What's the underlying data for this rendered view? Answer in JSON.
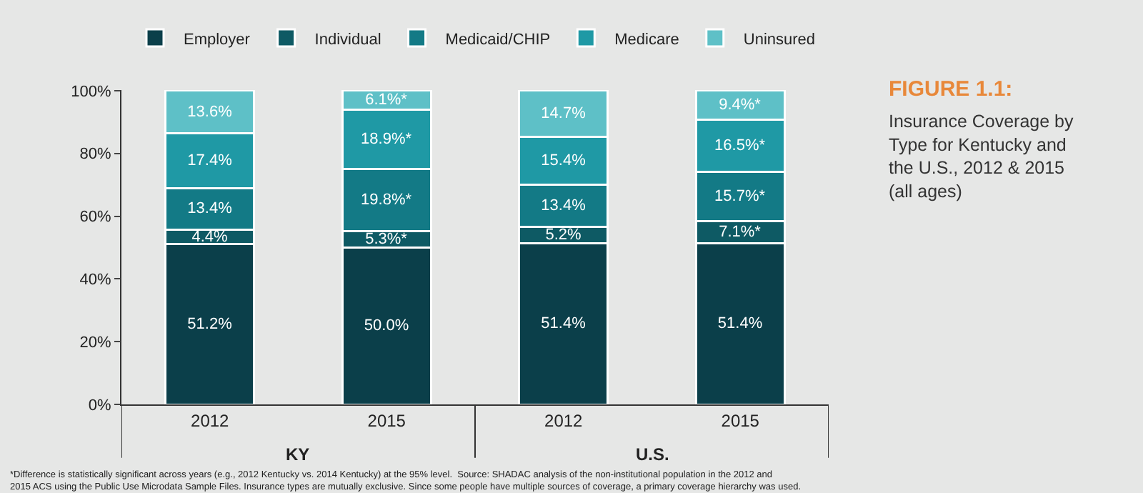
{
  "chart_data": {
    "type": "bar",
    "stacked": true,
    "title": "FIGURE 1.1:",
    "subtitle": "Insurance Coverage by Type for Kentucky and the U.S., 2012 & 2015 (all ages)",
    "categories": [
      "2012",
      "2015",
      "2012",
      "2015"
    ],
    "series": [
      {
        "name": "Employer",
        "color": "#0b3f4a",
        "values": [
          51.2,
          50.0,
          51.4,
          51.4
        ],
        "value_labels": [
          "51.2%",
          "50.0%",
          "51.4%",
          "51.4%"
        ]
      },
      {
        "name": "Individual",
        "color": "#0e5a64",
        "values": [
          4.4,
          5.3,
          5.2,
          7.1
        ],
        "value_labels": [
          "4.4%",
          "5.3%*",
          "5.2%",
          "7.1%*"
        ]
      },
      {
        "name": "Medicaid/CHIP",
        "color": "#137a86",
        "values": [
          13.4,
          19.8,
          13.4,
          15.7
        ],
        "value_labels": [
          "13.4%",
          "19.8%*",
          "13.4%",
          "15.7%*"
        ]
      },
      {
        "name": "Medicare",
        "color": "#1f99a5",
        "values": [
          17.4,
          18.9,
          15.4,
          16.5
        ],
        "value_labels": [
          "17.4%",
          "18.9%*",
          "15.4%",
          "16.5%*"
        ]
      },
      {
        "name": "Uninsured",
        "color": "#5ec0c7",
        "values": [
          13.6,
          6.1,
          14.7,
          9.4
        ],
        "value_labels": [
          "13.6%",
          "6.1%*",
          "14.7%",
          "9.4%*"
        ]
      }
    ],
    "ylim": [
      0,
      100.2
    ],
    "yticks": [
      {
        "value": 0,
        "label": "0%"
      },
      {
        "value": 20,
        "label": "20%"
      },
      {
        "value": 40,
        "label": "40%"
      },
      {
        "value": 60,
        "label": "60%"
      },
      {
        "value": 80,
        "label": "80%"
      },
      {
        "value": 100,
        "label": "100%"
      }
    ],
    "grid": false,
    "legend": "top",
    "annotations": [
      "KY",
      "U.S.",
      "*Difference is statistically significant across years (e.g., 2012 Kentucky vs. 2014 Kentucky) at the 95% level.  Source: SHADAC analysis of the non-institutional population in the 2012 and 2015 ACS using the Public Use Microdata Sample Files. Insurance types are mutually exclusive. Since some people have multiple sources of coverage, a primary coverage hierarchy was used."
    ]
  }
}
